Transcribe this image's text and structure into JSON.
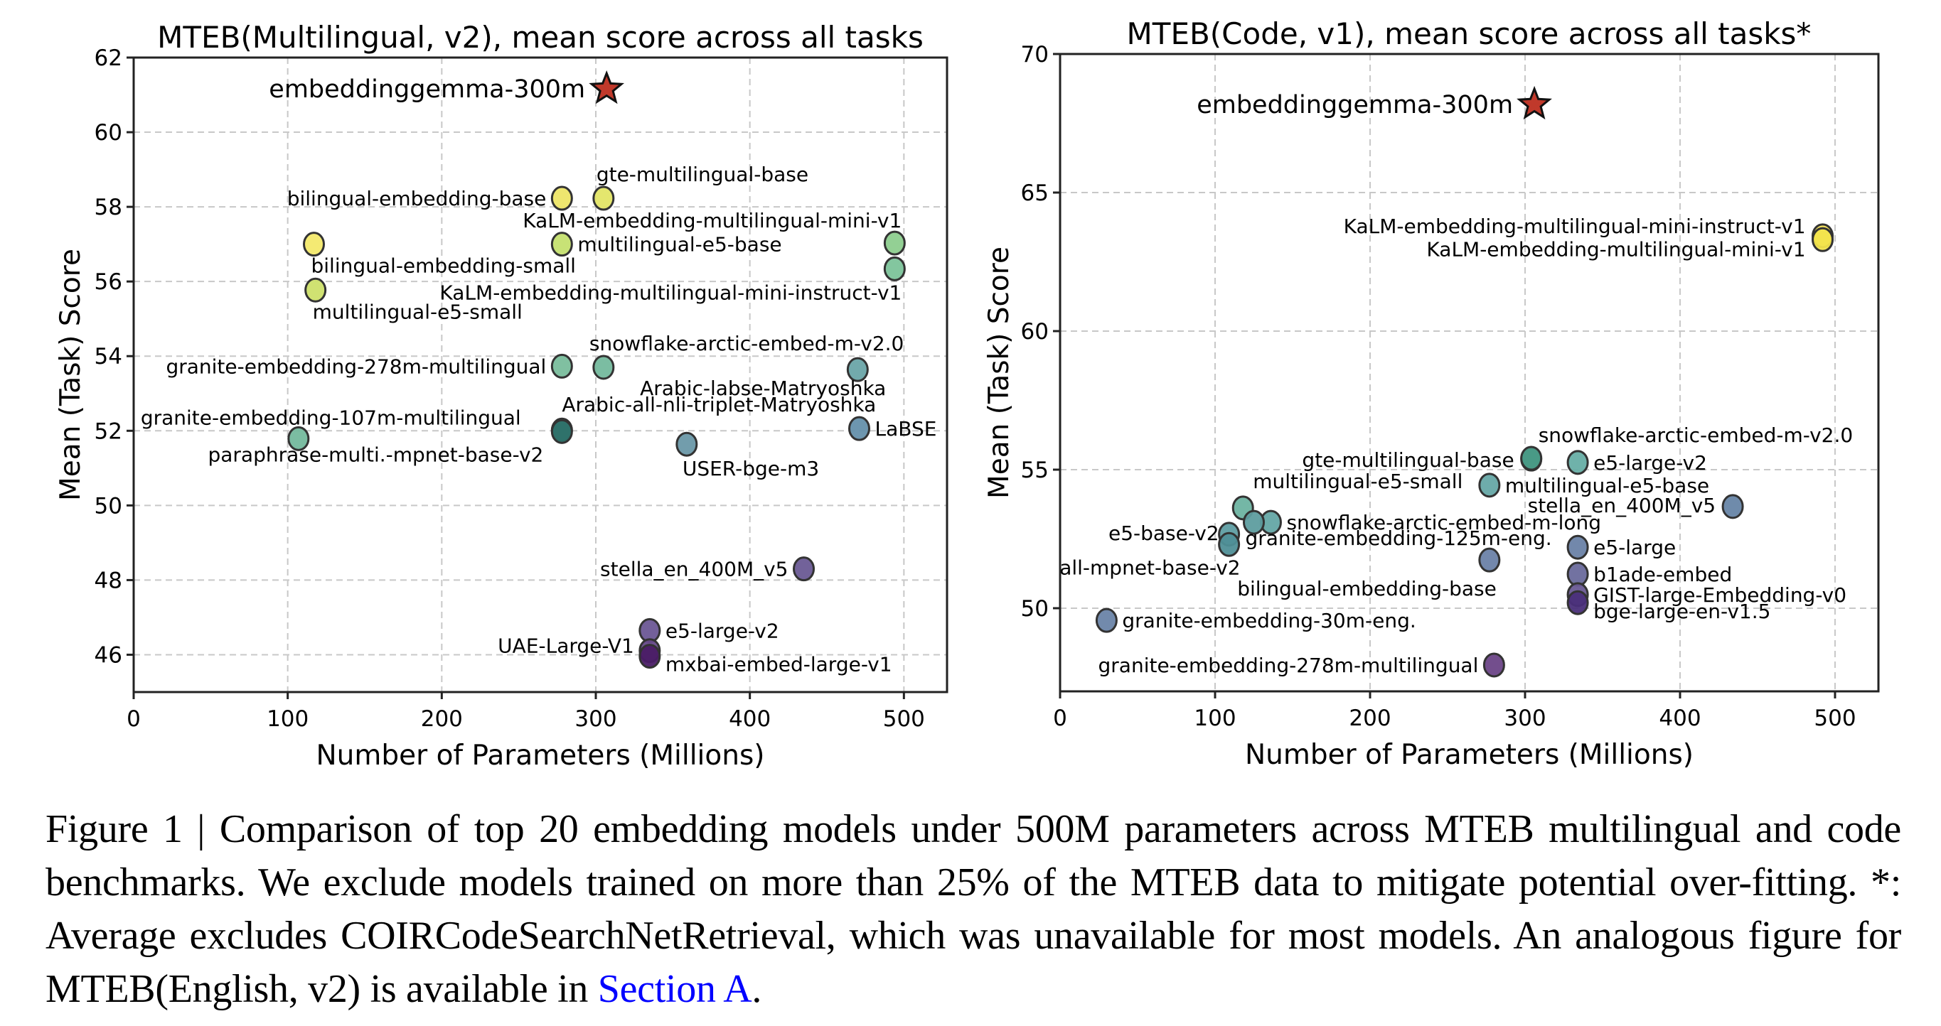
{
  "chart_data": [
    {
      "type": "scatter",
      "title": "MTEB(Multilingual, v2), mean score across all tasks",
      "xlabel": "Number of Parameters (Millions)",
      "ylabel": "Mean (Task) Score",
      "xlim": [
        0,
        528
      ],
      "ylim": [
        45,
        62
      ],
      "xticks": [
        0,
        100,
        200,
        300,
        400,
        500
      ],
      "yticks": [
        46,
        48,
        50,
        52,
        54,
        56,
        58,
        60,
        62
      ],
      "grid": true,
      "highlight": {
        "name": "embeddinggemma-300m",
        "x": 307,
        "y": 61.16,
        "marker": "star",
        "color": "#c0392b"
      },
      "points": [
        {
          "name": "bilingual-embedding-base",
          "x": 278,
          "y": 58.23,
          "color": "#ede567"
        },
        {
          "name": "gte-multilingual-base",
          "x": 305,
          "y": 58.23,
          "color": "#e3e566"
        },
        {
          "name": "KaLM-embedding-multilingual-mini-v1",
          "x": 494,
          "y": 57.03,
          "color": "#8dce8e"
        },
        {
          "name": "bilingual-embedding-small",
          "x": 117,
          "y": 57.0,
          "color": "#f3e96b"
        },
        {
          "name": "multilingual-e5-base",
          "x": 278,
          "y": 57.0,
          "color": "#c5e06f"
        },
        {
          "name": "KaLM-embedding-multilingual-mini-instruct-v1",
          "x": 494,
          "y": 56.34,
          "color": "#7cc39a"
        },
        {
          "name": "multilingual-e5-small",
          "x": 118,
          "y": 55.77,
          "color": "#cde06a"
        },
        {
          "name": "granite-embedding-278m-multilingual",
          "x": 278,
          "y": 53.73,
          "color": "#79bd9c"
        },
        {
          "name": "snowflake-arctic-embed-m-v2.0",
          "x": 305,
          "y": 53.7,
          "color": "#74b99d"
        },
        {
          "name": "Arabic-labse-Matryoshka",
          "x": 470,
          "y": 53.64,
          "color": "#6aa5a8"
        },
        {
          "name": "Arabic-all-nli-triplet-Matryoshka",
          "x": 278,
          "y": 52.02,
          "color": "#3f8c84"
        },
        {
          "name": "granite-embedding-107m-multilingual",
          "x": 107,
          "y": 51.79,
          "color": "#74b99d"
        },
        {
          "name": "paraphrase-multi.-mpnet-base-v2",
          "x": 278,
          "y": 51.98,
          "color": "#2e7169"
        },
        {
          "name": "LaBSE",
          "x": 471,
          "y": 52.06,
          "color": "#6590ab"
        },
        {
          "name": "USER-bge-m3",
          "x": 359,
          "y": 51.64,
          "color": "#6a98a8"
        },
        {
          "name": "stella_en_400M_v5",
          "x": 435,
          "y": 48.3,
          "color": "#6a5a95"
        },
        {
          "name": "e5-large-v2",
          "x": 335,
          "y": 46.65,
          "color": "#6b5795"
        },
        {
          "name": "UAE-Large-V1",
          "x": 335,
          "y": 46.11,
          "color": "#66498a"
        },
        {
          "name": "mxbai-embed-large-v1",
          "x": 335,
          "y": 45.96,
          "color": "#4a1c66"
        }
      ]
    },
    {
      "type": "scatter",
      "title": "MTEB(Code, v1), mean score across all tasks*",
      "xlabel": "Number of Parameters (Millions)",
      "ylabel": "Mean (Task) Score",
      "xlim": [
        0,
        528
      ],
      "ylim": [
        47,
        70
      ],
      "xticks": [
        0,
        100,
        200,
        300,
        400,
        500
      ],
      "yticks": [
        50,
        55,
        60,
        65,
        70
      ],
      "grid": true,
      "highlight": {
        "name": "embeddinggemma-300m",
        "x": 306,
        "y": 68.18,
        "marker": "star",
        "color": "#c0392b"
      },
      "points": [
        {
          "name": "KaLM-embedding-multilingual-mini-instruct-v1",
          "x": 492,
          "y": 63.44,
          "color": "#f0dd55"
        },
        {
          "name": "KaLM-embedding-multilingual-mini-v1",
          "x": 492,
          "y": 63.3,
          "color": "#f2e44c"
        },
        {
          "name": "snowflake-arctic-embed-m-v2.0",
          "x": 304,
          "y": 55.38,
          "color": "#3f8f7e"
        },
        {
          "name": "gte-multilingual-base",
          "x": 304,
          "y": 55.41,
          "color": "#4a9a86"
        },
        {
          "name": "e5-large-v2",
          "x": 334,
          "y": 55.26,
          "color": "#67aea5"
        },
        {
          "name": "multilingual-e5-base",
          "x": 277,
          "y": 54.44,
          "color": "#66a8a6"
        },
        {
          "name": "stella_en_400M_v5",
          "x": 434,
          "y": 53.67,
          "color": "#6785a6"
        },
        {
          "name": "multilingual-e5-small",
          "x": 118,
          "y": 53.62,
          "color": "#6db3a1"
        },
        {
          "name": "snowflake-arctic-embed-m-long",
          "x": 136,
          "y": 53.1,
          "color": "#64a7a5"
        },
        {
          "name": "granite-embedding-125m-eng.",
          "x": 125,
          "y": 53.1,
          "color": "#5e9d9f"
        },
        {
          "name": "e5-base-v2",
          "x": 109,
          "y": 52.67,
          "color": "#5f9ea3"
        },
        {
          "name": "all-mpnet-base-v2",
          "x": 109,
          "y": 52.3,
          "color": "#4f8f97"
        },
        {
          "name": "e5-large",
          "x": 334,
          "y": 52.2,
          "color": "#6a82a6"
        },
        {
          "name": "bilingual-embedding-base",
          "x": 277,
          "y": 51.74,
          "color": "#6b82a8"
        },
        {
          "name": "b1ade-embed",
          "x": 334,
          "y": 51.23,
          "color": "#6a6a9c"
        },
        {
          "name": "GIST-large-Embedding-v0",
          "x": 334,
          "y": 50.49,
          "color": "#6a5a95"
        },
        {
          "name": "bge-large-en-v1.5",
          "x": 334,
          "y": 50.2,
          "color": "#4a2f7a"
        },
        {
          "name": "granite-embedding-30m-eng.",
          "x": 30,
          "y": 49.56,
          "color": "#6a84a8"
        },
        {
          "name": "granite-embedding-278m-multilingual",
          "x": 280,
          "y": 47.95,
          "color": "#6c4587"
        }
      ]
    }
  ],
  "caption": {
    "prefix": "Figure 1 | Comparison of top 20 embedding models under 500M parameters across MTEB multilingual and code benchmarks. We exclude models trained on more than 25% of the MTEB data to mitigate potential over-fitting. *: Average excludes COIRCodeSearchNetRetrieval, which was unavailable for most models. An analogous figure for MTEB(English, v2) is available in ",
    "link": "Section A",
    "suffix": ".",
    "link_color": "#0000ff"
  }
}
